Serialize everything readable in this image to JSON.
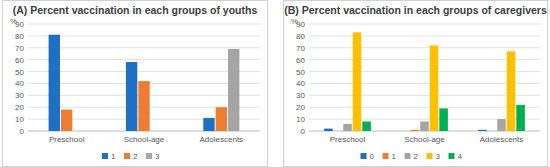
{
  "chart_data": [
    {
      "type": "bar",
      "title": "(A) Percent vaccination in each groups of youths",
      "y_label": "%",
      "categories": [
        "Preschool",
        "School-age",
        "Adolescents"
      ],
      "series": [
        {
          "name": "1",
          "color": "#1f6fc5",
          "values": [
            81,
            58,
            11
          ]
        },
        {
          "name": "2",
          "color": "#ed7d31",
          "values": [
            18,
            42,
            20
          ]
        },
        {
          "name": "3",
          "color": "#a5a5a5",
          "values": [
            0,
            0,
            69
          ]
        }
      ],
      "ylim": [
        0,
        90
      ],
      "yticks": [
        0,
        10,
        20,
        30,
        40,
        50,
        60,
        70,
        80,
        90
      ],
      "grid": true,
      "legend": "bottom"
    },
    {
      "type": "bar",
      "title": "(B) Percent vaccination in each groups of caregivers",
      "y_label": "%",
      "categories": [
        "Preschool",
        "School-age",
        "Adolescents"
      ],
      "series": [
        {
          "name": "0",
          "color": "#1f6fc5",
          "values": [
            2,
            0,
            1
          ]
        },
        {
          "name": "1",
          "color": "#ed7d31",
          "values": [
            0,
            1,
            0
          ]
        },
        {
          "name": "2",
          "color": "#a5a5a5",
          "values": [
            6,
            8,
            10
          ]
        },
        {
          "name": "3",
          "color": "#ffc000",
          "values": [
            83,
            72,
            67
          ]
        },
        {
          "name": "4",
          "color": "#00b050",
          "values": [
            8,
            19,
            22
          ]
        }
      ],
      "ylim": [
        0,
        90
      ],
      "yticks": [
        0,
        10,
        20,
        30,
        40,
        50,
        60,
        70,
        80,
        90
      ],
      "grid": true,
      "legend": "bottom"
    }
  ]
}
